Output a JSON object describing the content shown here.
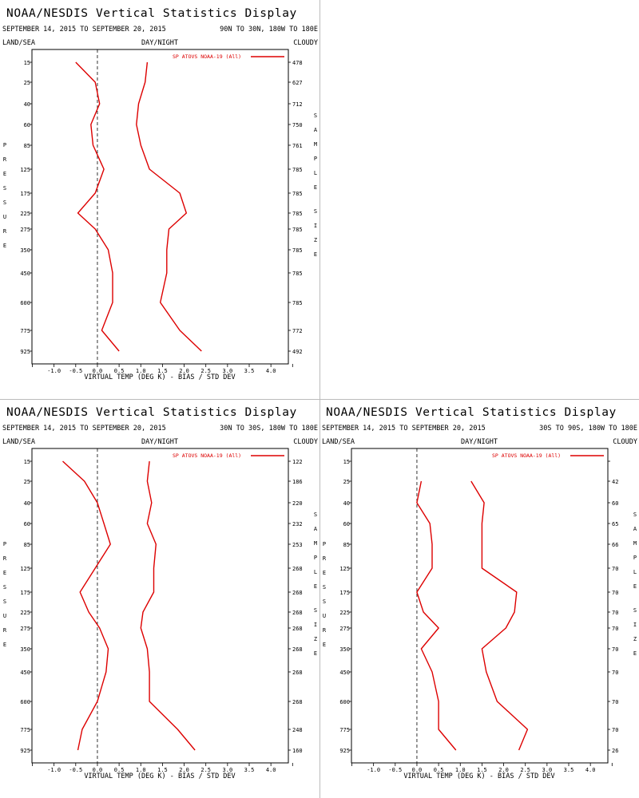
{
  "chart_data": [
    {
      "type": "line",
      "title": "NOAA/NESDIS Vertical Statistics Display",
      "date_range": "SEPTEMBER 14, 2015 TO SEPTEMBER 20, 2015",
      "region": "90N TO 30N, 180W TO 180E",
      "top_labels": {
        "left": "LAND/SEA",
        "center": "DAY/NIGHT",
        "right": "CLOUDY"
      },
      "ylabel": "PRESSURE",
      "ylabel_right": "SAMPLE SIZE",
      "xlabel": "VIRTUAL TEMP (DEG K) - BIAS / STD DEV",
      "xticks": [
        "-1.0",
        "-0.5",
        "0.0",
        "0.5",
        "1.0",
        "1.5",
        "2.0",
        "2.5",
        "3.0",
        "3.5",
        "4.0"
      ],
      "xlim": [
        -1.5,
        4.5
      ],
      "legend": "SP ATOVS NOAA-19 (All)",
      "color": "#d00",
      "levels": [
        "15",
        "25",
        "40",
        "60",
        "85",
        "125",
        "175",
        "225",
        "275",
        "350",
        "450",
        "600",
        "775",
        "925"
      ],
      "sample_size": [
        "478",
        "627",
        "712",
        "750",
        "761",
        "785",
        "785",
        "785",
        "785",
        "785",
        "785",
        "785",
        "772",
        "492"
      ],
      "series": [
        {
          "values": [
            -0.5,
            -0.05,
            0.05,
            -0.15,
            -0.1,
            0.15,
            -0.05,
            -0.45,
            -0.05,
            0.25,
            0.35,
            0.35,
            0.1,
            0.5
          ]
        },
        {
          "values": [
            1.15,
            1.1,
            0.95,
            0.9,
            1.0,
            1.2,
            1.9,
            2.05,
            1.65,
            1.6,
            1.6,
            1.45,
            1.9,
            2.4
          ]
        }
      ]
    },
    {
      "type": "line",
      "title": "NOAA/NESDIS Vertical Statistics Display",
      "date_range": "SEPTEMBER 14, 2015 TO SEPTEMBER 20, 2015",
      "region": "30N TO 30S, 180W TO 180E",
      "top_labels": {
        "left": "LAND/SEA",
        "center": "DAY/NIGHT",
        "right": "CLOUDY"
      },
      "ylabel": "PRESSURE",
      "ylabel_right": "SAMPLE SIZE",
      "xlabel": "VIRTUAL TEMP (DEG K) - BIAS / STD DEV",
      "xticks": [
        "-1.0",
        "-0.5",
        "0.0",
        "0.5",
        "1.0",
        "1.5",
        "2.0",
        "2.5",
        "3.0",
        "3.5",
        "4.0"
      ],
      "xlim": [
        -1.5,
        4.5
      ],
      "legend": "SP ATOVS NOAA-19 (All)",
      "color": "#d00",
      "levels": [
        "15",
        "25",
        "40",
        "60",
        "85",
        "125",
        "175",
        "225",
        "275",
        "350",
        "450",
        "600",
        "775",
        "925"
      ],
      "sample_size": [
        "122",
        "186",
        "220",
        "232",
        "253",
        "268",
        "268",
        "268",
        "268",
        "268",
        "268",
        "268",
        "248",
        "160"
      ],
      "series": [
        {
          "values": [
            -0.8,
            -0.3,
            0.0,
            0.15,
            0.3,
            -0.05,
            -0.4,
            -0.2,
            0.05,
            0.25,
            0.2,
            0.0,
            -0.35,
            -0.45
          ]
        },
        {
          "values": [
            1.2,
            1.15,
            1.25,
            1.15,
            1.35,
            1.3,
            1.3,
            1.05,
            1.0,
            1.15,
            1.2,
            1.2,
            1.85,
            2.25
          ]
        }
      ]
    },
    {
      "type": "line",
      "title": "NOAA/NESDIS Vertical Statistics Display",
      "date_range": "SEPTEMBER 14, 2015 TO SEPTEMBER 20, 2015",
      "region": "30S TO 90S, 180W TO 180E",
      "top_labels": {
        "left": "LAND/SEA",
        "center": "DAY/NIGHT",
        "right": "CLOUDY"
      },
      "ylabel": "PRESSURE",
      "ylabel_right": "SAMPLE SIZE",
      "xlabel": "VIRTUAL TEMP (DEG K) - BIAS / STD DEV",
      "xticks": [
        "-1.0",
        "-0.5",
        "0.0",
        "0.5",
        "1.0",
        "1.5",
        "2.0",
        "2.5",
        "3.0",
        "3.5",
        "4.0"
      ],
      "xlim": [
        -1.5,
        4.5
      ],
      "legend": "SP ATOVS NOAA-19 (All)",
      "color": "#d00",
      "levels": [
        "15",
        "25",
        "40",
        "60",
        "85",
        "125",
        "175",
        "225",
        "275",
        "350",
        "450",
        "600",
        "775",
        "925"
      ],
      "sample_size": [
        "",
        "42",
        "60",
        "65",
        "66",
        "70",
        "70",
        "70",
        "70",
        "70",
        "70",
        "70",
        "70",
        "26"
      ],
      "series": [
        {
          "values": [
            null,
            0.1,
            0.0,
            0.3,
            0.35,
            0.35,
            0.0,
            0.15,
            0.5,
            0.1,
            0.35,
            0.5,
            0.5,
            0.9
          ]
        },
        {
          "values": [
            null,
            1.25,
            1.55,
            1.5,
            1.5,
            1.5,
            2.3,
            2.25,
            2.05,
            1.5,
            1.6,
            1.85,
            2.55,
            2.35
          ]
        }
      ]
    }
  ]
}
